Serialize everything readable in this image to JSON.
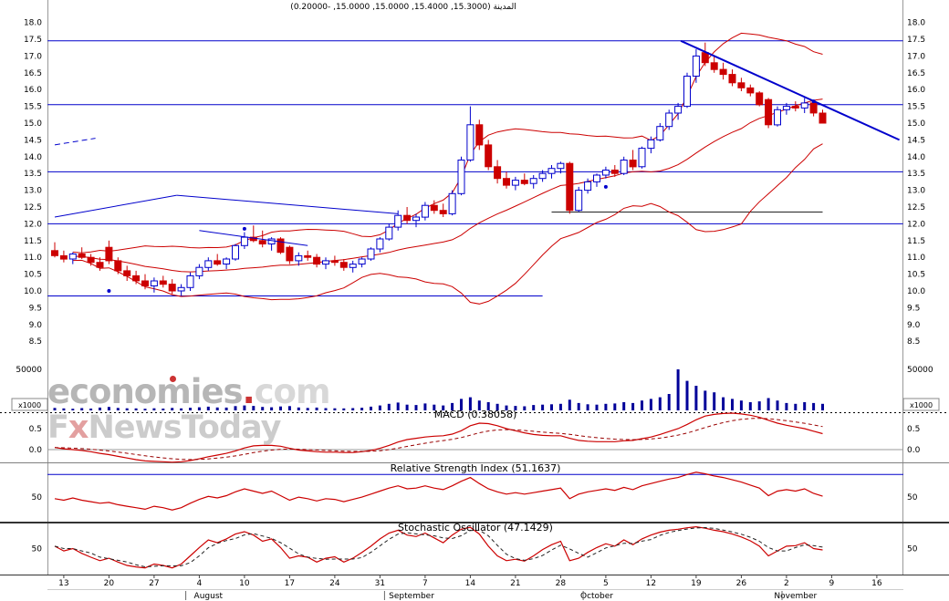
{
  "window": {
    "title": "المدينة (15.3000, 15.4000, 15.0000, 15.0000, -0.20000)"
  },
  "watermark": {
    "brand": "economies",
    "brand_dot": ".",
    "brand_tld": "com",
    "news_f": "F",
    "news_x": "x",
    "news_rest": "NewsToday"
  },
  "chart_data": {
    "type": "candlestick",
    "instrument": "المدينة",
    "title": "المدينة (15.3000, 15.4000, 15.0000, 15.0000, -0.20000)",
    "quote": {
      "open": 15.3,
      "high": 15.4,
      "low": 15.0,
      "close": 15.0,
      "change": -0.2
    },
    "price_axis": {
      "min": 8.5,
      "max": 18.0,
      "step": 0.5,
      "labels": [
        "18.0",
        "17.5",
        "17.0",
        "16.5",
        "16.0",
        "15.5",
        "15.0",
        "14.5",
        "14.0",
        "13.5",
        "13.0",
        "12.5",
        "12.0",
        "11.5",
        "11.0",
        "10.5",
        "10.0",
        "9.5",
        "9.0",
        "8.5"
      ]
    },
    "volume_axis": {
      "label": "50000",
      "multiplier": "x1000",
      "max": 50000
    },
    "x_ticks": [
      {
        "label": "13",
        "i": 1
      },
      {
        "label": "20",
        "i": 6
      },
      {
        "label": "27",
        "i": 11
      },
      {
        "label": "4",
        "i": 16
      },
      {
        "label": "10",
        "i": 21
      },
      {
        "label": "17",
        "i": 26
      },
      {
        "label": "24",
        "i": 31
      },
      {
        "label": "31",
        "i": 36
      },
      {
        "label": "7",
        "i": 41
      },
      {
        "label": "14",
        "i": 46
      },
      {
        "label": "21",
        "i": 51
      },
      {
        "label": "28",
        "i": 56
      },
      {
        "label": "5",
        "i": 61
      },
      {
        "label": "12",
        "i": 66
      },
      {
        "label": "19",
        "i": 71
      },
      {
        "label": "26",
        "i": 76
      },
      {
        "label": "2",
        "i": 81
      },
      {
        "label": "9",
        "i": 86
      },
      {
        "label": "16",
        "i": 91
      }
    ],
    "months": [
      {
        "label": "August",
        "i": 17
      },
      {
        "label": "September",
        "i": 39.5
      },
      {
        "label": "October",
        "i": 60
      },
      {
        "label": "November",
        "i": 82
      }
    ],
    "month_boundaries": [
      14.5,
      36.5,
      58.5,
      80.5
    ],
    "candles": [
      [
        11.2,
        11.45,
        11.0,
        11.05
      ],
      [
        11.05,
        11.2,
        10.85,
        10.95
      ],
      [
        10.95,
        11.15,
        10.8,
        11.1
      ],
      [
        11.1,
        11.3,
        10.95,
        11.0
      ],
      [
        11.0,
        11.1,
        10.75,
        10.85
      ],
      [
        10.85,
        11.0,
        10.6,
        10.7
      ],
      [
        11.3,
        11.5,
        10.8,
        10.9
      ],
      [
        10.9,
        11.0,
        10.5,
        10.6
      ],
      [
        10.6,
        10.75,
        10.3,
        10.45
      ],
      [
        10.45,
        10.6,
        10.2,
        10.3
      ],
      [
        10.3,
        10.5,
        10.05,
        10.15
      ],
      [
        10.15,
        10.4,
        9.95,
        10.3
      ],
      [
        10.3,
        10.45,
        10.1,
        10.2
      ],
      [
        10.2,
        10.35,
        9.9,
        10.0
      ],
      [
        10.0,
        10.2,
        9.85,
        10.1
      ],
      [
        10.1,
        10.55,
        10.0,
        10.45
      ],
      [
        10.45,
        10.8,
        10.35,
        10.7
      ],
      [
        10.7,
        11.0,
        10.6,
        10.9
      ],
      [
        10.9,
        11.1,
        10.75,
        10.8
      ],
      [
        10.8,
        11.0,
        10.65,
        10.95
      ],
      [
        10.95,
        11.4,
        10.9,
        11.35
      ],
      [
        11.35,
        11.75,
        11.25,
        11.6
      ],
      [
        11.6,
        11.95,
        11.45,
        11.5
      ],
      [
        11.5,
        11.8,
        11.3,
        11.4
      ],
      [
        11.4,
        11.6,
        11.2,
        11.55
      ],
      [
        11.55,
        11.6,
        11.1,
        11.15
      ],
      [
        11.3,
        11.35,
        10.8,
        10.9
      ],
      [
        10.9,
        11.15,
        10.75,
        11.05
      ],
      [
        11.05,
        11.2,
        10.9,
        11.0
      ],
      [
        11.0,
        11.1,
        10.7,
        10.8
      ],
      [
        10.8,
        11.0,
        10.65,
        10.9
      ],
      [
        10.9,
        11.05,
        10.75,
        10.85
      ],
      [
        10.85,
        10.95,
        10.6,
        10.7
      ],
      [
        10.7,
        10.9,
        10.55,
        10.8
      ],
      [
        10.8,
        11.0,
        10.7,
        10.95
      ],
      [
        10.95,
        11.3,
        10.9,
        11.25
      ],
      [
        11.25,
        11.6,
        11.15,
        11.55
      ],
      [
        11.55,
        12.0,
        11.5,
        11.9
      ],
      [
        11.9,
        12.4,
        11.8,
        12.25
      ],
      [
        12.25,
        12.5,
        12.0,
        12.1
      ],
      [
        12.1,
        12.3,
        11.9,
        12.2
      ],
      [
        12.2,
        12.65,
        12.1,
        12.55
      ],
      [
        12.55,
        12.7,
        12.3,
        12.4
      ],
      [
        12.4,
        12.6,
        12.2,
        12.3
      ],
      [
        12.3,
        13.0,
        12.25,
        12.9
      ],
      [
        12.9,
        14.0,
        12.85,
        13.9
      ],
      [
        13.9,
        15.5,
        13.85,
        14.95
      ],
      [
        14.95,
        15.1,
        14.2,
        14.35
      ],
      [
        14.35,
        14.5,
        13.6,
        13.7
      ],
      [
        13.7,
        13.9,
        13.2,
        13.35
      ],
      [
        13.35,
        13.55,
        13.05,
        13.15
      ],
      [
        13.15,
        13.4,
        13.0,
        13.3
      ],
      [
        13.3,
        13.5,
        13.15,
        13.2
      ],
      [
        13.2,
        13.45,
        13.05,
        13.35
      ],
      [
        13.35,
        13.6,
        13.25,
        13.5
      ],
      [
        13.5,
        13.75,
        13.35,
        13.65
      ],
      [
        13.65,
        13.85,
        13.5,
        13.8
      ],
      [
        13.8,
        13.85,
        12.3,
        12.4
      ],
      [
        12.4,
        13.1,
        12.35,
        13.0
      ],
      [
        13.0,
        13.35,
        12.9,
        13.25
      ],
      [
        13.25,
        13.5,
        13.1,
        13.45
      ],
      [
        13.45,
        13.7,
        13.35,
        13.6
      ],
      [
        13.6,
        13.75,
        13.4,
        13.5
      ],
      [
        13.5,
        14.0,
        13.45,
        13.9
      ],
      [
        13.9,
        14.2,
        13.6,
        13.7
      ],
      [
        13.7,
        14.3,
        13.65,
        14.25
      ],
      [
        14.25,
        14.6,
        14.1,
        14.5
      ],
      [
        14.5,
        15.0,
        14.45,
        14.9
      ],
      [
        14.9,
        15.4,
        14.8,
        15.3
      ],
      [
        15.3,
        15.6,
        15.1,
        15.5
      ],
      [
        15.5,
        16.5,
        15.45,
        16.4
      ],
      [
        16.4,
        17.2,
        16.2,
        17.0
      ],
      [
        17.1,
        17.4,
        16.7,
        16.8
      ],
      [
        16.8,
        17.0,
        16.5,
        16.6
      ],
      [
        16.6,
        16.8,
        16.3,
        16.45
      ],
      [
        16.45,
        16.6,
        16.1,
        16.2
      ],
      [
        16.2,
        16.35,
        15.95,
        16.05
      ],
      [
        16.05,
        16.15,
        15.8,
        15.9
      ],
      [
        15.9,
        15.95,
        15.5,
        15.55
      ],
      [
        15.7,
        15.75,
        14.85,
        14.95
      ],
      [
        14.95,
        15.5,
        14.9,
        15.4
      ],
      [
        15.4,
        15.6,
        15.25,
        15.5
      ],
      [
        15.5,
        15.65,
        15.35,
        15.45
      ],
      [
        15.45,
        15.75,
        15.3,
        15.6
      ],
      [
        15.6,
        15.65,
        15.2,
        15.3
      ],
      [
        15.3,
        15.4,
        15.0,
        15.0
      ]
    ],
    "volumes": [
      3000,
      2500,
      2000,
      2800,
      2200,
      3500,
      4200,
      3000,
      2600,
      2400,
      2000,
      2600,
      2200,
      3000,
      2500,
      3200,
      3800,
      4500,
      3600,
      3400,
      5200,
      6000,
      5500,
      4200,
      3800,
      4800,
      5200,
      3600,
      3000,
      3400,
      2800,
      2600,
      2400,
      2800,
      3200,
      4500,
      6000,
      8000,
      9500,
      7000,
      6500,
      8500,
      7000,
      6000,
      9000,
      14000,
      16000,
      12000,
      10000,
      8000,
      6000,
      5500,
      5000,
      6500,
      7000,
      7500,
      8000,
      13000,
      9000,
      7500,
      7000,
      8000,
      8500,
      10000,
      9000,
      12000,
      14000,
      16000,
      20000,
      50000,
      36000,
      30000,
      24000,
      22000,
      16000,
      14000,
      12000,
      10000,
      11000,
      15000,
      12000,
      9000,
      8000,
      10000,
      9000,
      8000
    ],
    "support_resistance": [
      {
        "price": 17.45,
        "i1": -0.8,
        "i2": 93.9,
        "color": "blue"
      },
      {
        "price": 15.55,
        "i1": -0.8,
        "i2": 93.9,
        "color": "blue"
      },
      {
        "price": 13.55,
        "i1": -0.8,
        "i2": 93.9,
        "color": "blue"
      },
      {
        "price": 12.0,
        "i1": -0.8,
        "i2": 93.9,
        "color": "blue"
      },
      {
        "price": 12.35,
        "i1": 55,
        "i2": 85,
        "color": "black"
      },
      {
        "price": 9.85,
        "i1": -0.8,
        "i2": 54,
        "color": "blue"
      }
    ],
    "trendlines": [
      {
        "i1": 0,
        "p1": 14.35,
        "i2": 4.5,
        "p2": 14.55,
        "dash": true,
        "width": 1
      },
      {
        "i1": 0,
        "p1": 12.2,
        "i2": 13.5,
        "p2": 12.85,
        "dash": false,
        "width": 1
      },
      {
        "i1": 13.5,
        "p1": 12.85,
        "i2": 38,
        "p2": 12.3,
        "dash": false,
        "width": 1
      },
      {
        "i1": 16,
        "p1": 11.8,
        "i2": 28,
        "p2": 11.35,
        "dash": false,
        "width": 1
      },
      {
        "i1": 69.3,
        "p1": 17.45,
        "i2": 93.5,
        "p2": 14.5,
        "dash": false,
        "width": 2
      }
    ],
    "markers": [
      {
        "i": 6,
        "p": 10.0
      },
      {
        "i": 21,
        "p": 11.85
      },
      {
        "i": 61,
        "p": 13.1
      },
      {
        "i": 84,
        "p": 15.65
      }
    ],
    "overlays": {
      "bollinger_period": 20,
      "bollinger_mult": 2
    },
    "indicators": {
      "macd": {
        "title": "MACD (0.38058)",
        "current": 0.38058,
        "levels": [
          "0.5",
          "0.0"
        ],
        "level_values": [
          0.5,
          0.0
        ],
        "values": [
          0.05,
          0.02,
          0.0,
          -0.02,
          -0.05,
          -0.09,
          -0.12,
          -0.16,
          -0.2,
          -0.24,
          -0.27,
          -0.28,
          -0.29,
          -0.3,
          -0.29,
          -0.26,
          -0.22,
          -0.17,
          -0.13,
          -0.09,
          -0.03,
          0.04,
          0.09,
          0.1,
          0.1,
          0.08,
          0.03,
          -0.01,
          -0.03,
          -0.05,
          -0.06,
          -0.06,
          -0.07,
          -0.07,
          -0.05,
          -0.02,
          0.03,
          0.1,
          0.18,
          0.24,
          0.27,
          0.3,
          0.32,
          0.33,
          0.37,
          0.45,
          0.57,
          0.63,
          0.62,
          0.57,
          0.5,
          0.45,
          0.4,
          0.36,
          0.34,
          0.33,
          0.33,
          0.27,
          0.22,
          0.2,
          0.19,
          0.19,
          0.19,
          0.21,
          0.22,
          0.26,
          0.3,
          0.36,
          0.43,
          0.5,
          0.6,
          0.71,
          0.8,
          0.84,
          0.86,
          0.87,
          0.85,
          0.82,
          0.77,
          0.7,
          0.63,
          0.58,
          0.54,
          0.5,
          0.44,
          0.38
        ]
      },
      "rsi": {
        "title": "Relative Strength Index (51.1637)",
        "current": 51.1637,
        "levels": [
          "50"
        ],
        "level_values": [
          50
        ],
        "overbought_line": 80,
        "values": [
          48,
          46,
          49,
          46,
          44,
          42,
          43,
          40,
          38,
          36,
          34,
          38,
          36,
          33,
          36,
          42,
          47,
          51,
          49,
          52,
          57,
          61,
          58,
          55,
          58,
          52,
          46,
          50,
          48,
          45,
          48,
          47,
          44,
          47,
          50,
          54,
          58,
          62,
          65,
          61,
          62,
          65,
          62,
          60,
          65,
          71,
          76,
          68,
          61,
          57,
          54,
          56,
          54,
          56,
          58,
          60,
          62,
          48,
          54,
          57,
          59,
          61,
          59,
          63,
          60,
          65,
          68,
          71,
          74,
          76,
          80,
          83,
          81,
          78,
          76,
          73,
          70,
          66,
          62,
          52,
          58,
          60,
          58,
          61,
          55,
          51.2
        ]
      },
      "stochastic": {
        "title": "Stochastic Oscillator (47.1429)",
        "current": 47.1429,
        "levels": [
          "50"
        ],
        "level_values": [
          50
        ],
        "k_values": [
          55,
          45,
          50,
          40,
          32,
          25,
          30,
          22,
          15,
          12,
          10,
          18,
          15,
          10,
          18,
          35,
          52,
          68,
          62,
          70,
          80,
          85,
          78,
          65,
          70,
          52,
          30,
          35,
          32,
          22,
          30,
          33,
          22,
          30,
          42,
          55,
          70,
          82,
          88,
          78,
          75,
          82,
          72,
          62,
          78,
          90,
          94,
          80,
          55,
          35,
          25,
          28,
          24,
          35,
          48,
          58,
          65,
          25,
          30,
          42,
          52,
          60,
          55,
          68,
          58,
          70,
          78,
          84,
          88,
          90,
          93,
          95,
          92,
          88,
          85,
          80,
          74,
          66,
          55,
          35,
          45,
          55,
          56,
          62,
          50,
          47.1
        ]
      }
    },
    "colors": {
      "up": "#0000cc",
      "down": "#cc0000",
      "volume": "#000099",
      "trend": "#0000cc",
      "band": "#cc0000",
      "macd_line": "#cc0000",
      "signal_line": "#990000",
      "rsi_line": "#cc0000",
      "stoch_k": "#cc0000",
      "stoch_d": "#222222",
      "sr_blue": "#0000cc",
      "sr_black": "#222222"
    }
  }
}
